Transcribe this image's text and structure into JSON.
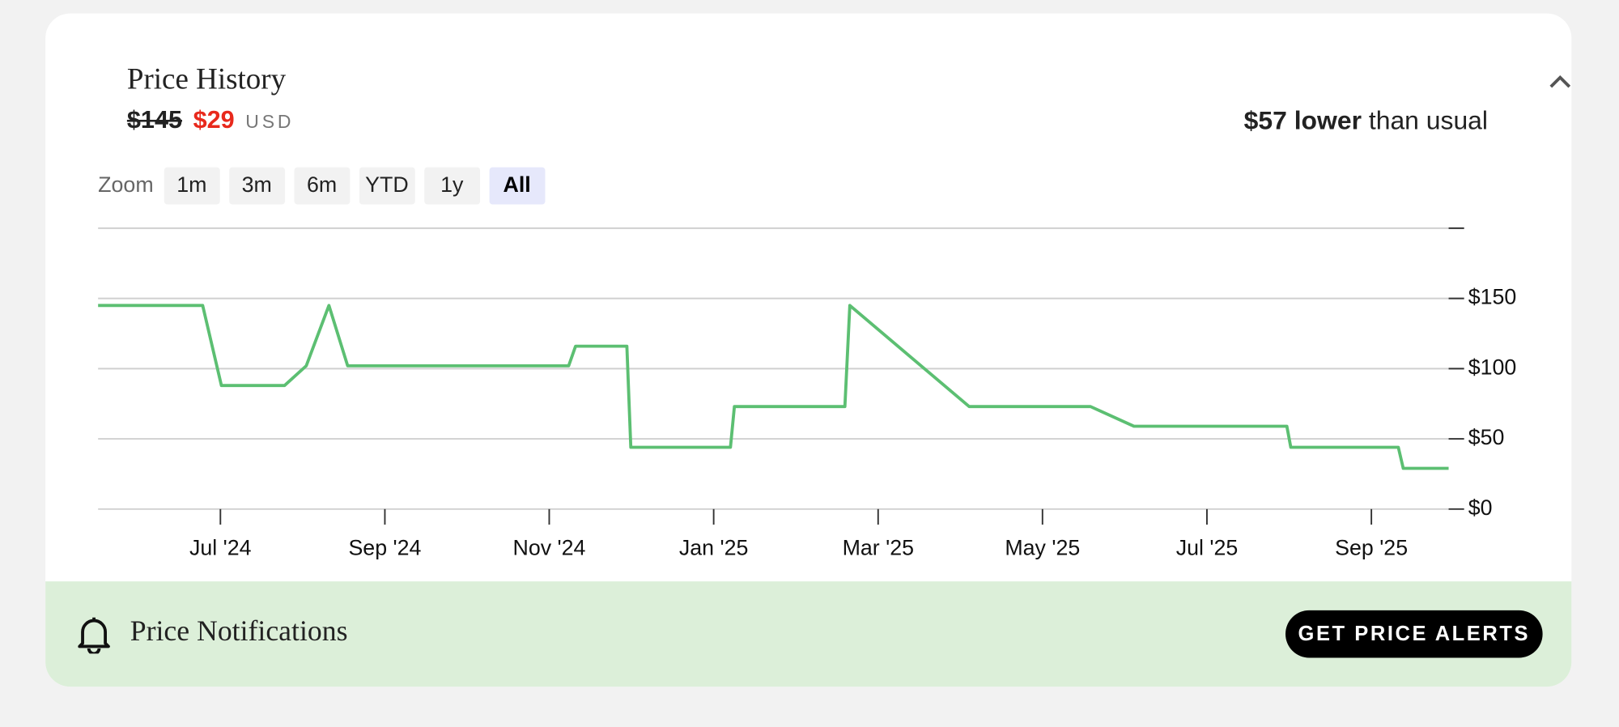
{
  "header": {
    "title": "Price History",
    "original_price": "$145",
    "price": "$29",
    "currency": "USD",
    "savings_amount": "$57 lower",
    "savings_text": "than usual"
  },
  "zoom": {
    "label": "Zoom",
    "options": [
      "1m",
      "3m",
      "6m",
      "YTD",
      "1y",
      "All"
    ],
    "selected": 5
  },
  "chart_data": {
    "type": "line",
    "color": "#5cbf72",
    "grid": true,
    "x": [
      2024.376,
      2024.482,
      2024.501,
      2024.565,
      2024.587,
      2024.61,
      2024.629,
      2024.853,
      2024.86,
      2024.912,
      2024.916,
      2025.017,
      2025.021,
      2025.133,
      2025.138,
      2025.259,
      2025.382,
      2025.426,
      2025.581,
      2025.585,
      2025.694,
      2025.699,
      2025.745
    ],
    "values": [
      145,
      145,
      88,
      88,
      102,
      145,
      102,
      102,
      116,
      116,
      44,
      44,
      73,
      73,
      145,
      73,
      73,
      59,
      59,
      44,
      44,
      29,
      29
    ],
    "xlim": [
      2024.376,
      2025.745
    ],
    "xticks": [
      {
        "value": 2024.5,
        "label": "Jul '24"
      },
      {
        "value": 2024.6667,
        "label": "Sep '24"
      },
      {
        "value": 2024.8333,
        "label": "Nov '24"
      },
      {
        "value": 2025.0,
        "label": "Jan '25"
      },
      {
        "value": 2025.1667,
        "label": "Mar '25"
      },
      {
        "value": 2025.3333,
        "label": "May '25"
      },
      {
        "value": 2025.5,
        "label": "Jul '25"
      },
      {
        "value": 2025.6667,
        "label": "Sep '25"
      }
    ],
    "ylim": [
      0,
      200
    ],
    "yticks": [
      {
        "value": 0,
        "label": "$0"
      },
      {
        "value": 50,
        "label": "$50"
      },
      {
        "value": 100,
        "label": "$100"
      },
      {
        "value": 150,
        "label": "$150"
      }
    ]
  },
  "notifications": {
    "title": "Price Notifications",
    "button": "GET PRICE ALERTS"
  }
}
